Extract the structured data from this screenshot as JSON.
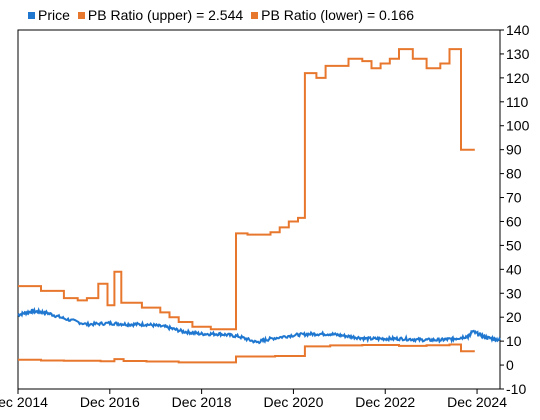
{
  "chart_data": {
    "type": "line",
    "title": "",
    "xlabel": "",
    "ylabel": "",
    "ylim": [
      -10,
      140
    ],
    "yticks": [
      -10,
      0,
      10,
      20,
      30,
      40,
      50,
      60,
      70,
      80,
      90,
      100,
      110,
      120,
      130,
      140
    ],
    "xlim": [
      2015.0,
      2025.5
    ],
    "xticks": [
      {
        "value": 2015.0,
        "label": "Dec 2014"
      },
      {
        "value": 2017.0,
        "label": "Dec 2016"
      },
      {
        "value": 2019.0,
        "label": "Dec 2018"
      },
      {
        "value": 2021.0,
        "label": "Dec 2020"
      },
      {
        "value": 2023.0,
        "label": "Dec 2022"
      },
      {
        "value": 2025.0,
        "label": "Dec 2024"
      }
    ],
    "grid": false,
    "legend_position": "top-left",
    "series": [
      {
        "name": "Price",
        "color": "#1f77d0",
        "style": "noisy-line",
        "points": [
          [
            2015.0,
            21
          ],
          [
            2015.3,
            22.5
          ],
          [
            2015.6,
            22
          ],
          [
            2016.0,
            19.5
          ],
          [
            2016.5,
            17
          ],
          [
            2017.0,
            17.5
          ],
          [
            2017.4,
            17
          ],
          [
            2017.8,
            17
          ],
          [
            2018.2,
            16
          ],
          [
            2018.6,
            14
          ],
          [
            2019.0,
            13
          ],
          [
            2019.4,
            13
          ],
          [
            2019.8,
            12
          ],
          [
            2020.2,
            9.5
          ],
          [
            2020.5,
            11
          ],
          [
            2021.0,
            12.5
          ],
          [
            2021.4,
            13
          ],
          [
            2021.8,
            13
          ],
          [
            2022.2,
            12
          ],
          [
            2022.6,
            11
          ],
          [
            2023.0,
            11
          ],
          [
            2023.4,
            11
          ],
          [
            2023.8,
            10.5
          ],
          [
            2024.2,
            10.5
          ],
          [
            2024.5,
            11
          ],
          [
            2024.8,
            12
          ],
          [
            2024.9,
            14
          ],
          [
            2025.2,
            11.5
          ],
          [
            2025.5,
            10.5
          ]
        ]
      },
      {
        "name": "PB Ratio (upper) = 2.544",
        "color": "#e8772e",
        "style": "step",
        "points": [
          [
            2015.0,
            33
          ],
          [
            2015.5,
            33
          ],
          [
            2015.5,
            31
          ],
          [
            2016.0,
            31
          ],
          [
            2016.0,
            28
          ],
          [
            2016.3,
            28
          ],
          [
            2016.3,
            27
          ],
          [
            2016.5,
            27
          ],
          [
            2016.5,
            28
          ],
          [
            2016.75,
            28
          ],
          [
            2016.75,
            34
          ],
          [
            2016.95,
            34
          ],
          [
            2016.95,
            25
          ],
          [
            2017.1,
            25
          ],
          [
            2017.1,
            39
          ],
          [
            2017.25,
            39
          ],
          [
            2017.25,
            26
          ],
          [
            2017.7,
            26
          ],
          [
            2017.7,
            24
          ],
          [
            2018.1,
            24
          ],
          [
            2018.1,
            22
          ],
          [
            2018.3,
            22
          ],
          [
            2018.3,
            20
          ],
          [
            2018.5,
            20
          ],
          [
            2018.5,
            18
          ],
          [
            2018.8,
            18
          ],
          [
            2018.8,
            16
          ],
          [
            2019.2,
            16
          ],
          [
            2019.2,
            15
          ],
          [
            2019.75,
            15
          ],
          [
            2019.75,
            55
          ],
          [
            2020.0,
            55
          ],
          [
            2020.0,
            54.5
          ],
          [
            2020.5,
            54.5
          ],
          [
            2020.5,
            55.5
          ],
          [
            2020.7,
            55.5
          ],
          [
            2020.7,
            57.5
          ],
          [
            2020.9,
            57.5
          ],
          [
            2020.9,
            60
          ],
          [
            2021.1,
            60
          ],
          [
            2021.1,
            61.5
          ],
          [
            2021.25,
            61.5
          ],
          [
            2021.25,
            122
          ],
          [
            2021.5,
            122
          ],
          [
            2021.5,
            120
          ],
          [
            2021.7,
            120
          ],
          [
            2021.7,
            125
          ],
          [
            2022.2,
            125
          ],
          [
            2022.2,
            128
          ],
          [
            2022.5,
            128
          ],
          [
            2022.5,
            127
          ],
          [
            2022.7,
            127
          ],
          [
            2022.7,
            124
          ],
          [
            2022.9,
            124
          ],
          [
            2022.9,
            126
          ],
          [
            2023.1,
            126
          ],
          [
            2023.1,
            128
          ],
          [
            2023.3,
            128
          ],
          [
            2023.3,
            132
          ],
          [
            2023.6,
            132
          ],
          [
            2023.6,
            128
          ],
          [
            2023.9,
            128
          ],
          [
            2023.9,
            124
          ],
          [
            2024.2,
            124
          ],
          [
            2024.2,
            126
          ],
          [
            2024.4,
            126
          ],
          [
            2024.4,
            132
          ],
          [
            2024.65,
            132
          ],
          [
            2024.65,
            90
          ],
          [
            2024.95,
            90
          ]
        ]
      },
      {
        "name": "PB Ratio (lower) = 0.166",
        "color": "#e8772e",
        "style": "step",
        "points": [
          [
            2015.0,
            2.2
          ],
          [
            2015.5,
            2.2
          ],
          [
            2015.5,
            1.9
          ],
          [
            2016.0,
            1.9
          ],
          [
            2016.0,
            1.8
          ],
          [
            2016.8,
            1.8
          ],
          [
            2016.8,
            1.6
          ],
          [
            2017.1,
            1.6
          ],
          [
            2017.1,
            2.5
          ],
          [
            2017.3,
            2.5
          ],
          [
            2017.3,
            1.7
          ],
          [
            2017.8,
            1.7
          ],
          [
            2017.8,
            1.5
          ],
          [
            2018.5,
            1.5
          ],
          [
            2018.5,
            1.1
          ],
          [
            2019.75,
            1.1
          ],
          [
            2019.75,
            3.6
          ],
          [
            2020.6,
            3.6
          ],
          [
            2020.6,
            3.8
          ],
          [
            2021.25,
            3.8
          ],
          [
            2021.25,
            7.8
          ],
          [
            2021.8,
            7.8
          ],
          [
            2021.8,
            8.2
          ],
          [
            2022.5,
            8.2
          ],
          [
            2022.5,
            8.4
          ],
          [
            2023.3,
            8.4
          ],
          [
            2023.3,
            8.0
          ],
          [
            2023.9,
            8.0
          ],
          [
            2023.9,
            8.3
          ],
          [
            2024.4,
            8.3
          ],
          [
            2024.4,
            8.6
          ],
          [
            2024.65,
            8.6
          ],
          [
            2024.65,
            5.8
          ],
          [
            2024.95,
            5.8
          ]
        ]
      }
    ]
  }
}
